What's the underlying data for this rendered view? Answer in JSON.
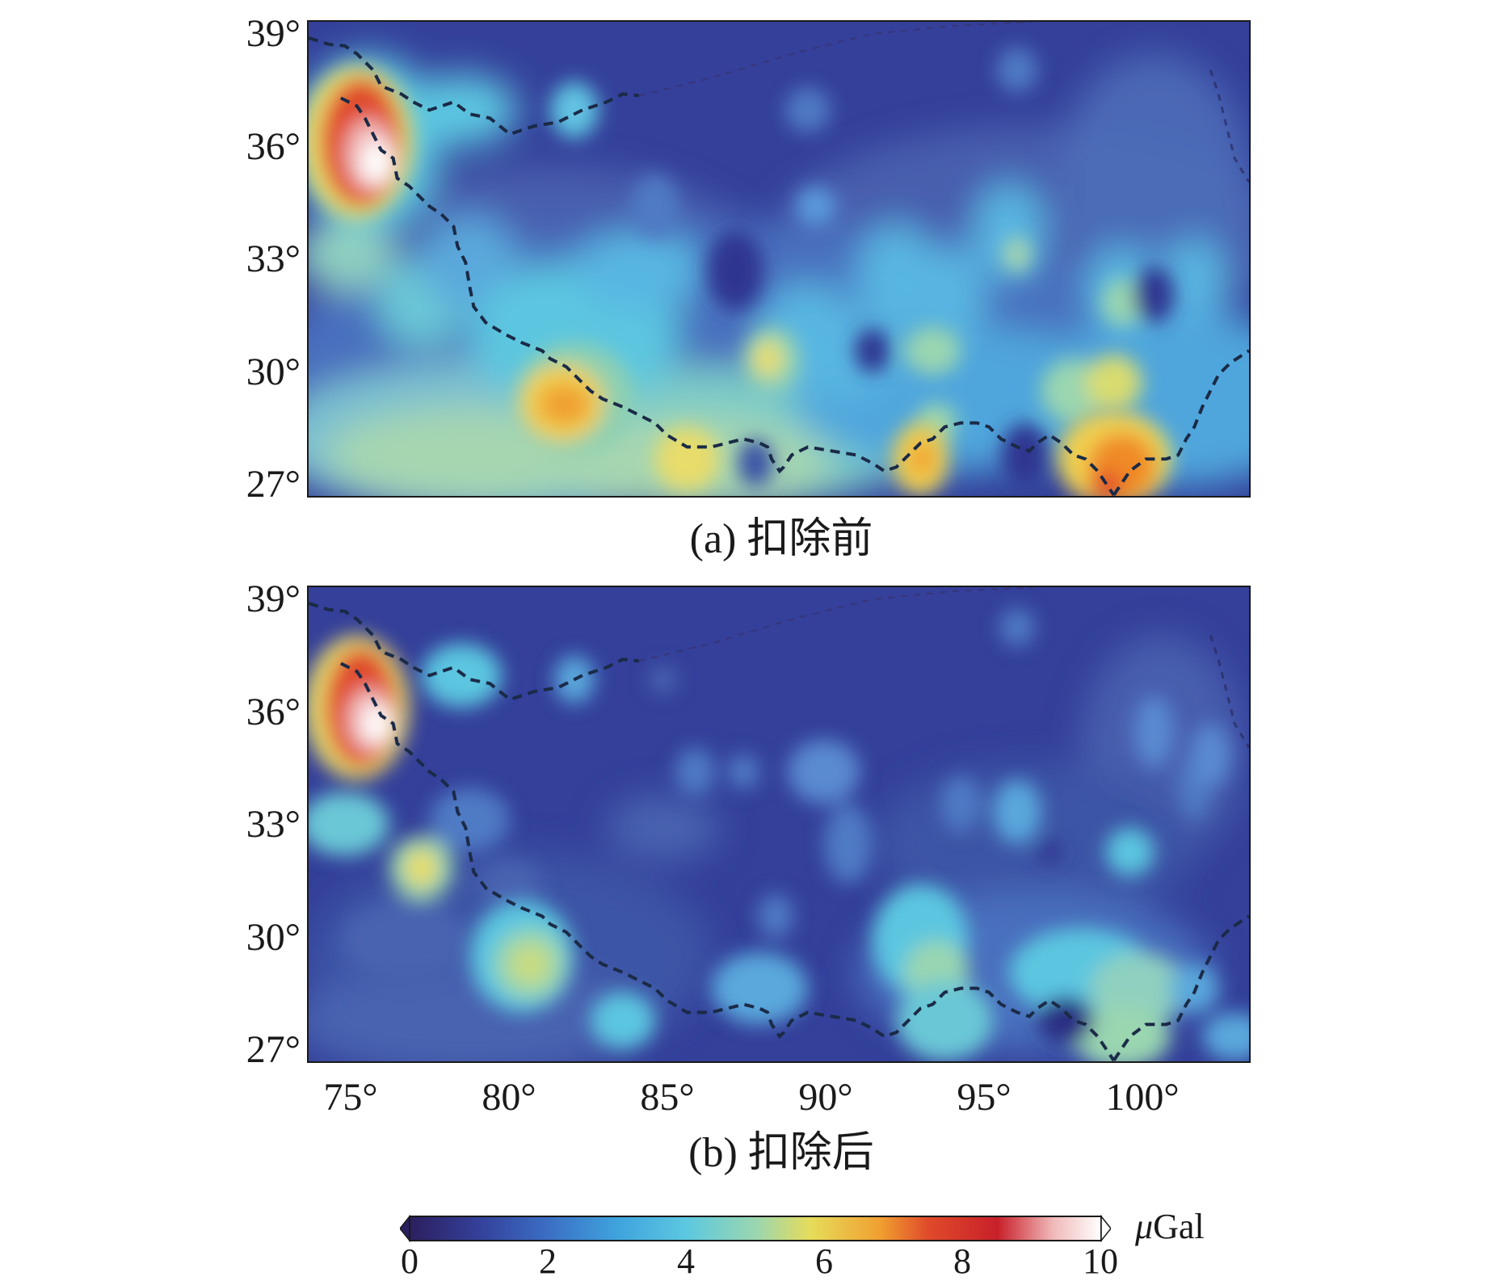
{
  "map": {
    "y_axis_labels": [
      "39°",
      "36°",
      "33°",
      "30°",
      "27°"
    ],
    "x_axis_labels": [
      "75°",
      "80°",
      "85°",
      "90°",
      "95°",
      "100°"
    ],
    "panel_a_caption": "(a) 扣除前",
    "panel_b_caption": "(b) 扣除后",
    "extent": {
      "lon": [
        73.7,
        103.4
      ],
      "lat": [
        26.7,
        39.6
      ]
    }
  },
  "colorbar": {
    "ticks": [
      "0",
      "2",
      "4",
      "6",
      "8",
      "10"
    ],
    "unit_symbol": "μ",
    "unit": "Gal",
    "range": [
      0,
      10
    ],
    "colors": [
      "#2b1f5e",
      "#34409a",
      "#3b6ec4",
      "#3fa3dd",
      "#5cc8e0",
      "#9ad6b0",
      "#e6dc5a",
      "#f0a030",
      "#e04a2a",
      "#c8202a",
      "#f0b8b8",
      "#ffffff"
    ]
  }
}
